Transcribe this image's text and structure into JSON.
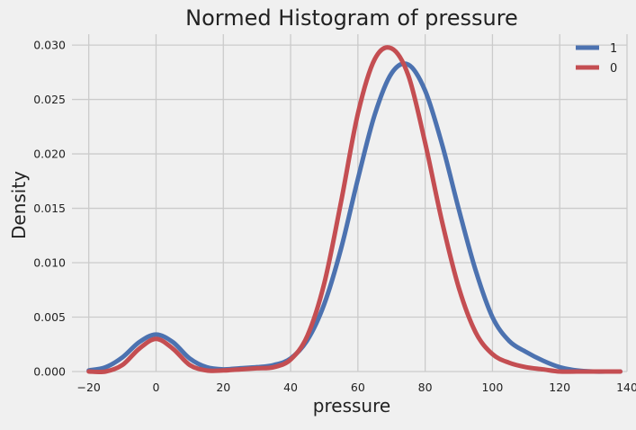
{
  "chart_data": {
    "type": "line",
    "title": "Normed Histogram of pressure",
    "xlabel": "pressure",
    "ylabel": "Density",
    "xlim": [
      -25,
      140
    ],
    "ylim": [
      0,
      0.031
    ],
    "grid": true,
    "legend_placement": "top-right",
    "x_ticks": [
      -20,
      0,
      20,
      40,
      60,
      80,
      100,
      120,
      140
    ],
    "x_tick_labels": [
      "−20",
      "0",
      "20",
      "40",
      "60",
      "80",
      "100",
      "120",
      "140"
    ],
    "y_ticks": [
      0,
      0.005,
      0.01,
      0.015,
      0.02,
      0.025,
      0.03
    ],
    "y_tick_labels": [
      "0.000",
      "0.005",
      "0.010",
      "0.015",
      "0.020",
      "0.025",
      "0.030"
    ],
    "series": [
      {
        "name": "1",
        "color": "#4c72b0",
        "x": [
          -20,
          -15,
          -10,
          -5,
          0,
          5,
          10,
          15,
          20,
          25,
          30,
          35,
          40,
          45,
          50,
          55,
          60,
          65,
          70,
          75,
          80,
          85,
          90,
          95,
          100,
          105,
          110,
          115,
          120,
          125,
          130,
          135,
          138
        ],
        "y": [
          0.0001,
          0.0004,
          0.0013,
          0.0027,
          0.0034,
          0.0027,
          0.0012,
          0.0004,
          0.0002,
          0.0003,
          0.0004,
          0.0006,
          0.0012,
          0.0029,
          0.0062,
          0.0113,
          0.0177,
          0.0236,
          0.0274,
          0.0282,
          0.0258,
          0.0209,
          0.0149,
          0.0093,
          0.005,
          0.0028,
          0.0018,
          0.001,
          0.0004,
          0.0001,
          0.0,
          0.0,
          0.0
        ]
      },
      {
        "name": "0",
        "color": "#c44e52",
        "x": [
          -20,
          -15,
          -10,
          -5,
          0,
          5,
          10,
          15,
          20,
          25,
          30,
          35,
          40,
          45,
          50,
          55,
          60,
          65,
          70,
          75,
          80,
          85,
          90,
          95,
          100,
          105,
          110,
          115,
          120,
          125,
          130,
          135,
          138
        ],
        "y": [
          0.0,
          0.0,
          0.0006,
          0.0021,
          0.003,
          0.0021,
          0.0006,
          0.0001,
          0.0001,
          0.0002,
          0.0003,
          0.0004,
          0.0011,
          0.0033,
          0.0081,
          0.0156,
          0.0237,
          0.0287,
          0.0297,
          0.0272,
          0.021,
          0.0138,
          0.0077,
          0.0036,
          0.0016,
          0.0008,
          0.0004,
          0.0002,
          0.0,
          0.0,
          0.0,
          0.0,
          0.0
        ]
      }
    ]
  }
}
